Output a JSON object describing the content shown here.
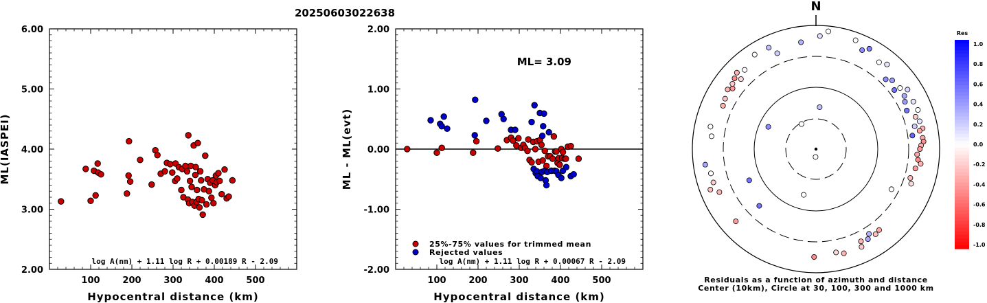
{
  "title": "20250603022638",
  "colors": {
    "accepted": "#cc0000",
    "rejected": "#0000cc",
    "axis": "#000000"
  },
  "chart_data": [
    {
      "type": "scatter",
      "ylabel": "ML(IASPEI)",
      "xlabel": "Hypocentral distance (km)",
      "xlim": [
        0,
        600
      ],
      "ylim": [
        2.0,
        6.0
      ],
      "xticks": [
        "100",
        "200",
        "300",
        "400",
        "500"
      ],
      "yticks": [
        "2.00",
        "3.00",
        "4.00",
        "5.00",
        "6.00"
      ],
      "formula": "log A(nm) + 1.11 log R + 0.00189 R - 2.09",
      "series": [
        {
          "points": [
            [
              28,
              3.13
            ],
            [
              88,
              3.67
            ],
            [
              100,
              3.14
            ],
            [
              108,
              3.64
            ],
            [
              112,
              3.23
            ],
            [
              117,
              3.76
            ],
            [
              118,
              3.61
            ],
            [
              125,
              3.58
            ],
            [
              188,
              3.26
            ],
            [
              192,
              3.56
            ],
            [
              193,
              4.13
            ],
            [
              196,
              3.46
            ],
            [
              220,
              3.82
            ],
            [
              248,
              3.41
            ],
            [
              257,
              3.98
            ],
            [
              262,
              3.9
            ],
            [
              270,
              3.59
            ],
            [
              280,
              3.63
            ],
            [
              285,
              3.77
            ],
            [
              293,
              3.75
            ],
            [
              298,
              3.61
            ],
            [
              305,
              3.47
            ],
            [
              306,
              3.76
            ],
            [
              310,
              3.51
            ],
            [
              314,
              3.7
            ],
            [
              320,
              3.32
            ],
            [
              322,
              3.67
            ],
            [
              325,
              3.2
            ],
            [
              330,
              3.72
            ],
            [
              334,
              3.63
            ],
            [
              336,
              3.16
            ],
            [
              337,
              4.23
            ],
            [
              339,
              3.1
            ],
            [
              341,
              3.47
            ],
            [
              343,
              3.72
            ],
            [
              345,
              3.37
            ],
            [
              347,
              3.12
            ],
            [
              350,
              4.06
            ],
            [
              352,
              3.06
            ],
            [
              354,
              3.57
            ],
            [
              355,
              3.7
            ],
            [
              357,
              3.12
            ],
            [
              358,
              3.32
            ],
            [
              360,
              4.1
            ],
            [
              362,
              3.17
            ],
            [
              364,
              3.03
            ],
            [
              366,
              3.63
            ],
            [
              368,
              3.48
            ],
            [
              370,
              3.15
            ],
            [
              372,
              2.91
            ],
            [
              375,
              3.33
            ],
            [
              378,
              3.89
            ],
            [
              381,
              3.08
            ],
            [
              384,
              3.5
            ],
            [
              387,
              3.3
            ],
            [
              390,
              3.44
            ],
            [
              393,
              3.19
            ],
            [
              396,
              3.48
            ],
            [
              398,
              3.1
            ],
            [
              402,
              3.4
            ],
            [
              404,
              3.56
            ],
            [
              406,
              3.45
            ],
            [
              410,
              3.6
            ],
            [
              413,
              3.47
            ],
            [
              418,
              3.25
            ],
            [
              425,
              3.66
            ],
            [
              430,
              3.18
            ],
            [
              435,
              3.21
            ],
            [
              444,
              3.48
            ]
          ]
        }
      ]
    },
    {
      "type": "scatter",
      "ylabel": "ML - ML(evt)",
      "xlabel": "Hypocentral distance (km)",
      "xlim": [
        0,
        600
      ],
      "ylim": [
        -2.0,
        2.0
      ],
      "xticks": [
        "100",
        "200",
        "300",
        "400",
        "500"
      ],
      "yticks": [
        "-2.00",
        "-1.00",
        "0.00",
        "1.00",
        "2.00"
      ],
      "annotation": "ML= 3.09",
      "legend": [
        "25%-75% values for trimmed mean",
        "Rejected values"
      ],
      "formula": "log A(nm) + 1.11 log R + 0.00067 R - 2.09",
      "series": [
        {
          "name": "25%-75% values for trimmed mean",
          "points": [
            [
              28,
              0.0
            ],
            [
              100,
              -0.06
            ],
            [
              112,
              0.02
            ],
            [
              188,
              -0.06
            ],
            [
              196,
              0.13
            ],
            [
              248,
              0.01
            ],
            [
              270,
              0.15
            ],
            [
              280,
              0.19
            ],
            [
              285,
              0.14
            ],
            [
              293,
              0.06
            ],
            [
              298,
              0.18
            ],
            [
              305,
              0.02
            ],
            [
              310,
              0.07
            ],
            [
              314,
              0.02
            ],
            [
              320,
              -0.03
            ],
            [
              322,
              0.16
            ],
            [
              325,
              -0.18
            ],
            [
              330,
              -0.22
            ],
            [
              334,
              0.12
            ],
            [
              339,
              0.0
            ],
            [
              343,
              0.13
            ],
            [
              347,
              -0.21
            ],
            [
              350,
              0.15
            ],
            [
              354,
              0.07
            ],
            [
              357,
              -0.19
            ],
            [
              362,
              -0.03
            ],
            [
              366,
              -0.28
            ],
            [
              370,
              -0.12
            ],
            [
              375,
              -0.12
            ],
            [
              381,
              -0.16
            ],
            [
              384,
              0.21
            ],
            [
              387,
              -0.04
            ],
            [
              390,
              -0.04
            ],
            [
              393,
              -0.23
            ],
            [
              396,
              -0.15
            ],
            [
              398,
              -0.26
            ],
            [
              402,
              0.0
            ],
            [
              404,
              -0.15
            ],
            [
              406,
              -0.05
            ],
            [
              410,
              -0.16
            ],
            [
              413,
              -0.16
            ],
            [
              418,
              0.04
            ],
            [
              425,
              0.05
            ],
            [
              444,
              -0.16
            ]
          ]
        },
        {
          "name": "Rejected values",
          "points": [
            [
              85,
              0.48
            ],
            [
              108,
              0.42
            ],
            [
              112,
              0.38
            ],
            [
              117,
              0.54
            ],
            [
              125,
              0.34
            ],
            [
              193,
              0.82
            ],
            [
              192,
              0.23
            ],
            [
              220,
              0.47
            ],
            [
              257,
              0.58
            ],
            [
              262,
              0.5
            ],
            [
              280,
              0.32
            ],
            [
              290,
              0.32
            ],
            [
              330,
              0.45
            ],
            [
              335,
              -0.33
            ],
            [
              337,
              0.73
            ],
            [
              340,
              -0.4
            ],
            [
              343,
              -0.37
            ],
            [
              345,
              -0.45
            ],
            [
              350,
              0.6
            ],
            [
              352,
              -0.48
            ],
            [
              355,
              -0.38
            ],
            [
              356,
              0.22
            ],
            [
              358,
              0.38
            ],
            [
              360,
              0.59
            ],
            [
              362,
              -0.36
            ],
            [
              364,
              -0.52
            ],
            [
              366,
              -0.6
            ],
            [
              368,
              -0.38
            ],
            [
              372,
              0.28
            ],
            [
              378,
              -0.36
            ],
            [
              386,
              -0.36
            ],
            [
              390,
              -0.37
            ],
            [
              395,
              -0.43
            ],
            [
              402,
              -0.48
            ],
            [
              406,
              -0.36
            ],
            [
              414,
              -0.3
            ],
            [
              425,
              -0.45
            ],
            [
              432,
              -0.42
            ]
          ]
        }
      ]
    },
    {
      "type": "scatter",
      "subtype": "polar",
      "north_label": "N",
      "caption": [
        "Residuals as a function of azimuth and distance",
        "Center (10km), Circle at 30, 100, 300 and 1000 km"
      ],
      "rings": [
        30,
        100,
        300,
        1000
      ],
      "colorbar": {
        "title": "Res",
        "ticks": [
          "1.0",
          "0.8",
          "0.6",
          "0.4",
          "0.2",
          "0.0",
          "-0.2",
          "-0.4",
          "-0.6",
          "-0.8",
          "-1.0"
        ],
        "range": [
          -1.0,
          1.0
        ]
      },
      "points": [
        {
          "az": 183,
          "dist": 30,
          "res": 0.0
        },
        {
          "az": 5,
          "dist": 160,
          "res": 0.25
        },
        {
          "az": 195,
          "dist": 180,
          "res": 0.0
        },
        {
          "az": 245,
          "dist": 280,
          "res": 0.55
        },
        {
          "az": 295,
          "dist": 200,
          "res": 0.45
        },
        {
          "az": 330,
          "dist": 110,
          "res": 0.0
        },
        {
          "az": 2,
          "dist": 430,
          "res": 0.12
        },
        {
          "az": 6,
          "dist": 450,
          "res": 0.0
        },
        {
          "az": 20,
          "dist": 440,
          "res": 0.0
        },
        {
          "az": 25,
          "dist": 415,
          "res": 0.45
        },
        {
          "az": 28,
          "dist": 432,
          "res": 0.5
        },
        {
          "az": 36,
          "dist": 408,
          "res": 0.0
        },
        {
          "az": 40,
          "dist": 420,
          "res": 0.1
        },
        {
          "az": 45,
          "dist": 375,
          "res": 0.45
        },
        {
          "az": 48,
          "dist": 390,
          "res": 0.4
        },
        {
          "az": 53,
          "dist": 373,
          "res": 0.55
        },
        {
          "az": 54,
          "dist": 395,
          "res": 0.0
        },
        {
          "az": 57,
          "dist": 415,
          "res": 0.15
        },
        {
          "az": 59,
          "dist": 392,
          "res": 0.35
        },
        {
          "az": 62,
          "dist": 383,
          "res": 0.4
        },
        {
          "az": 64,
          "dist": 412,
          "res": 0.1
        },
        {
          "az": 67,
          "dist": 375,
          "res": 0.55
        },
        {
          "az": 69,
          "dist": 415,
          "res": 0.0
        },
        {
          "az": 72,
          "dist": 398,
          "res": -0.2
        },
        {
          "az": 75,
          "dist": 408,
          "res": 0.1
        },
        {
          "az": 77,
          "dist": 385,
          "res": 0.2
        },
        {
          "az": 79,
          "dist": 413,
          "res": -0.3
        },
        {
          "az": 80,
          "dist": 400,
          "res": -0.35
        },
        {
          "az": 82,
          "dist": 370,
          "res": 0.6
        },
        {
          "az": 84,
          "dist": 408,
          "res": -0.35
        },
        {
          "az": 86,
          "dist": 410,
          "res": -0.45
        },
        {
          "az": 88,
          "dist": 400,
          "res": -0.3
        },
        {
          "az": 90,
          "dist": 395,
          "res": -0.4
        },
        {
          "az": 93,
          "dist": 385,
          "res": -0.35
        },
        {
          "az": 96,
          "dist": 390,
          "res": -0.45
        },
        {
          "az": 98,
          "dist": 402,
          "res": -0.3
        },
        {
          "az": 101,
          "dist": 385,
          "res": -0.4
        },
        {
          "az": 107,
          "dist": 375,
          "res": -0.25
        },
        {
          "az": 110,
          "dist": 385,
          "res": -0.15
        },
        {
          "az": 118,
          "dist": 325,
          "res": 0.0
        },
        {
          "az": 142,
          "dist": 390,
          "res": -0.35
        },
        {
          "az": 145,
          "dist": 395,
          "res": -0.25
        },
        {
          "az": 148,
          "dist": 380,
          "res": 0.3
        },
        {
          "az": 150,
          "dist": 395,
          "res": 0.35
        },
        {
          "az": 154,
          "dist": 390,
          "res": -0.3
        },
        {
          "az": 155,
          "dist": 410,
          "res": -0.2
        },
        {
          "az": 165,
          "dist": 410,
          "res": -0.3
        },
        {
          "az": 169,
          "dist": 400,
          "res": -0.15
        },
        {
          "az": 181,
          "dist": 410,
          "res": -0.45
        },
        {
          "az": 225,
          "dist": 305,
          "res": 0.55
        },
        {
          "az": 228,
          "dist": 410,
          "res": -0.4
        },
        {
          "az": 246,
          "dist": 402,
          "res": -0.3
        },
        {
          "az": 249,
          "dist": 430,
          "res": -0.25
        },
        {
          "az": 252,
          "dist": 410,
          "res": -0.2
        },
        {
          "az": 257,
          "dist": 410,
          "res": 0.0
        },
        {
          "az": 262,
          "dist": 425,
          "res": 0.35
        },
        {
          "az": 277,
          "dist": 400,
          "res": 0.0
        },
        {
          "az": 282,
          "dist": 410,
          "res": 0.0
        },
        {
          "az": 295,
          "dist": 390,
          "res": -0.3
        },
        {
          "az": 299,
          "dist": 395,
          "res": -0.25
        },
        {
          "az": 304,
          "dist": 405,
          "res": -0.3
        },
        {
          "az": 306,
          "dist": 392,
          "res": -0.4
        },
        {
          "az": 308,
          "dist": 403,
          "res": -0.2
        },
        {
          "az": 311,
          "dist": 410,
          "res": -0.45
        },
        {
          "az": 313,
          "dist": 390,
          "res": -0.15
        },
        {
          "az": 314,
          "dist": 418,
          "res": -0.3
        },
        {
          "az": 318,
          "dist": 405,
          "res": 0.0
        },
        {
          "az": 327,
          "dist": 428,
          "res": 0.0
        },
        {
          "az": 335,
          "dist": 425,
          "res": 0.25
        },
        {
          "az": 338,
          "dist": 393,
          "res": 0.2
        },
        {
          "az": 352,
          "dist": 410,
          "res": 0.3
        }
      ]
    }
  ]
}
